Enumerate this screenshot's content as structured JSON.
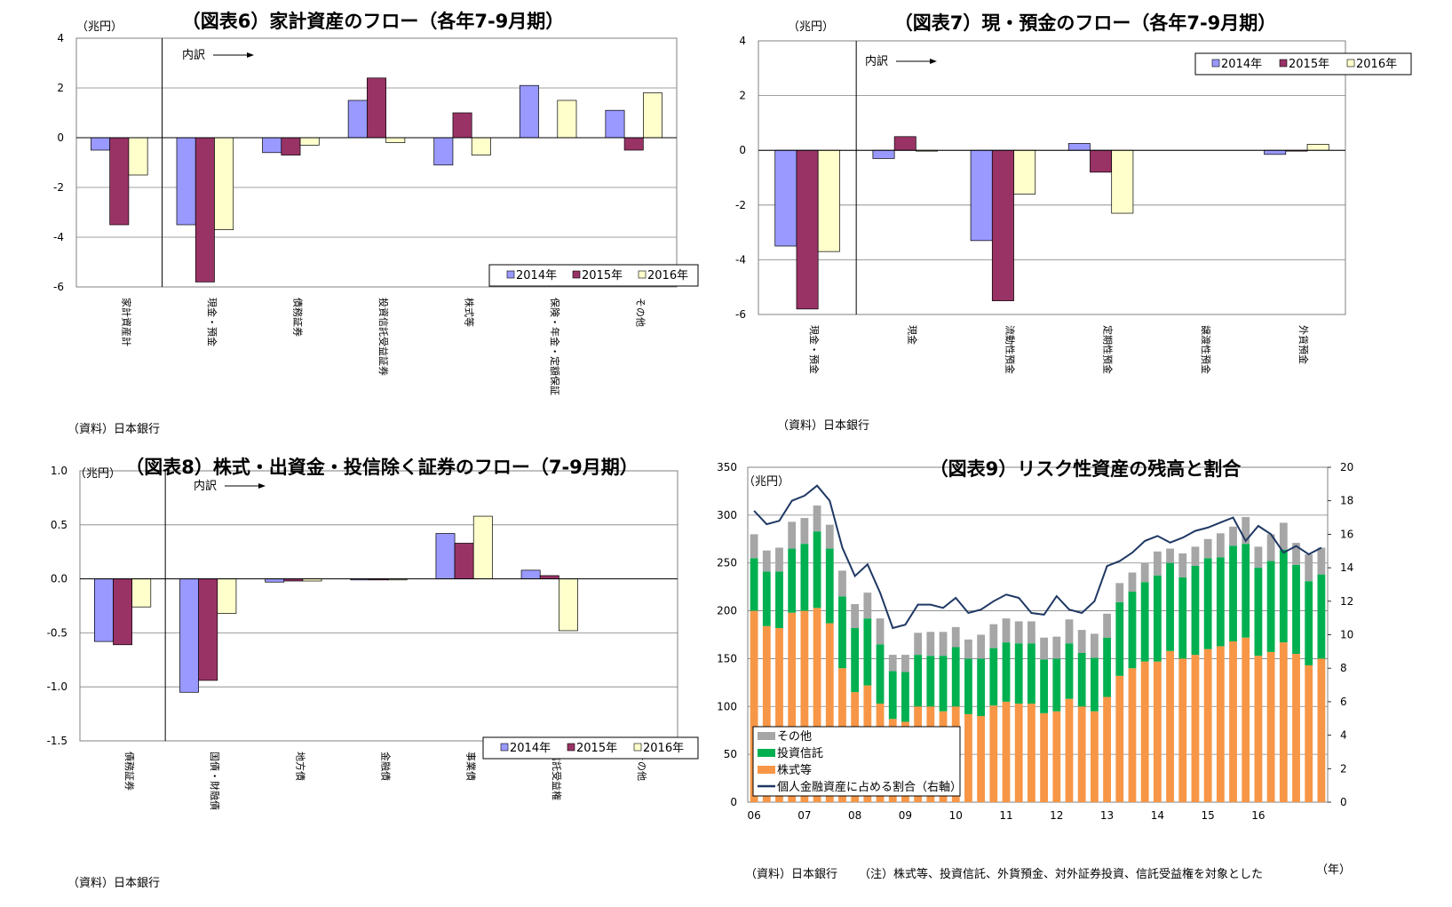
{
  "colors": {
    "s2014": "#9999ff",
    "s2015": "#993366",
    "s2016": "#ffffcc",
    "other": "#a6a6a6",
    "fund": "#00b050",
    "equity": "#f79646",
    "ratio": "#1f3864",
    "grid": "#808080"
  },
  "charts": {
    "fig6": {
      "title": "（図表6）家計資産のフロー（各年7-9月期）",
      "unit": "（兆円）",
      "source": "（資料）日本銀行",
      "breakdown": "内訳",
      "ylim": [
        -6,
        4
      ],
      "yticks": [
        "4",
        "2",
        "0",
        "-2",
        "-4",
        "-6"
      ],
      "categories": [
        "家計資産計",
        "現金・預金",
        "債務証券",
        "投資信託受益証券",
        "株式等",
        "保険・年金・定額保証",
        "その他"
      ],
      "series": [
        {
          "name": "2014年",
          "values": [
            -0.5,
            -3.5,
            -0.6,
            1.5,
            -1.1,
            2.1,
            1.1
          ]
        },
        {
          "name": "2015年",
          "values": [
            -3.5,
            -5.8,
            -0.7,
            2.4,
            1.0,
            0.0,
            -0.5
          ]
        },
        {
          "name": "2016年",
          "values": [
            -1.5,
            -3.7,
            -0.3,
            -0.2,
            -0.7,
            1.5,
            1.8
          ]
        }
      ]
    },
    "fig7": {
      "title": "（図表7）現・預金のフロー（各年7-9月期）",
      "unit": "（兆円）",
      "source": "（資料）日本銀行",
      "breakdown": "内訳",
      "ylim": [
        -6,
        4
      ],
      "yticks": [
        "4",
        "2",
        "0",
        "-2",
        "-4",
        "-6"
      ],
      "categories": [
        "現金・預金",
        "現金",
        "流動性預金",
        "定期性預金",
        "譲渡性預金",
        "外貨預金"
      ],
      "series": [
        {
          "name": "2014年",
          "values": [
            -3.5,
            -0.3,
            -3.3,
            0.25,
            0.0,
            -0.15
          ]
        },
        {
          "name": "2015年",
          "values": [
            -5.8,
            0.5,
            -5.5,
            -0.8,
            0.0,
            -0.03
          ]
        },
        {
          "name": "2016年",
          "values": [
            -3.7,
            -0.03,
            -1.6,
            -2.3,
            0.0,
            0.22
          ]
        }
      ]
    },
    "fig8": {
      "title": "（図表8）株式・出資金・投信除く証券のフロー（7-9月期）",
      "unit": "（兆円）",
      "source": "（資料）日本銀行",
      "breakdown": "内訳",
      "ylim": [
        -1.5,
        1.0
      ],
      "yticks": [
        "1.0",
        "0.5",
        "0.0",
        "-0.5",
        "-1.0",
        "-1.5"
      ],
      "categories": [
        "債務証券",
        "国債・財融債",
        "地方債",
        "金融債",
        "事業債",
        "信託受益権",
        "その他"
      ],
      "series": [
        {
          "name": "2014年",
          "values": [
            -0.58,
            -1.05,
            -0.03,
            -0.01,
            0.42,
            0.08,
            0.0
          ]
        },
        {
          "name": "2015年",
          "values": [
            -0.61,
            -0.94,
            -0.02,
            -0.01,
            0.33,
            0.03,
            0.0
          ]
        },
        {
          "name": "2016年",
          "values": [
            -0.26,
            -0.32,
            -0.02,
            -0.01,
            0.58,
            -0.48,
            0.0
          ]
        }
      ]
    },
    "fig9": {
      "title": "（図表9）リスク性資産の残高と割合",
      "unit": "（兆円）",
      "source": "（資料）日本銀行",
      "note": "（注）株式等、投資信託、外貨預金、対外証券投資、信託受益権を対象とした",
      "xunit": "（年）",
      "ylim": [
        0,
        350
      ],
      "yticks": [
        "350",
        "300",
        "250",
        "200",
        "150",
        "100",
        "50",
        "0"
      ],
      "y2lim": [
        0,
        20
      ],
      "y2ticks": [
        "20",
        "18",
        "16",
        "14",
        "12",
        "10",
        "8",
        "6",
        "4",
        "2",
        "0"
      ],
      "xticks": [
        "06",
        "07",
        "08",
        "09",
        "10",
        "11",
        "12",
        "13",
        "14",
        "15",
        "16"
      ],
      "legend": [
        "その他",
        "投資信託",
        "株式等",
        "個人金融資産に占める割合（右軸）"
      ],
      "equity": [
        200,
        184,
        182,
        198,
        200,
        203,
        187,
        140,
        115,
        122,
        103,
        87,
        84,
        100,
        100,
        95,
        100,
        92,
        90,
        101,
        105,
        103,
        103,
        93,
        95,
        108,
        100,
        95,
        110,
        132,
        140,
        147,
        147,
        158,
        150,
        154,
        160,
        163,
        168,
        172,
        153,
        157,
        167,
        155,
        143,
        150
      ],
      "fund": [
        55,
        57,
        59,
        67,
        70,
        80,
        78,
        75,
        67,
        70,
        62,
        50,
        52,
        54,
        53,
        58,
        62,
        58,
        60,
        60,
        62,
        63,
        63,
        56,
        55,
        58,
        56,
        56,
        62,
        77,
        80,
        83,
        90,
        92,
        85,
        93,
        95,
        93,
        100,
        98,
        92,
        95,
        97,
        93,
        88,
        88
      ],
      "other": [
        25,
        22,
        25,
        28,
        27,
        27,
        25,
        27,
        25,
        27,
        27,
        17,
        18,
        23,
        25,
        25,
        21,
        20,
        25,
        25,
        25,
        23,
        23,
        23,
        23,
        25,
        24,
        25,
        25,
        20,
        20,
        20,
        25,
        15,
        25,
        20,
        20,
        25,
        20,
        28,
        22,
        28,
        28,
        23,
        28,
        28
      ],
      "ratio": [
        17.4,
        16.6,
        16.8,
        18.0,
        18.3,
        18.9,
        18.0,
        15.2,
        13.5,
        14.2,
        12.5,
        10.4,
        10.6,
        11.8,
        11.8,
        11.6,
        12.2,
        11.3,
        11.5,
        12.0,
        12.4,
        12.2,
        11.3,
        11.2,
        12.3,
        11.5,
        11.3,
        12.0,
        14.1,
        14.4,
        14.9,
        15.6,
        15.9,
        15.5,
        15.8,
        16.2,
        16.4,
        16.7,
        17.0,
        15.6,
        16.5,
        16.0,
        14.9,
        15.3,
        14.8,
        15.2
      ]
    }
  }
}
